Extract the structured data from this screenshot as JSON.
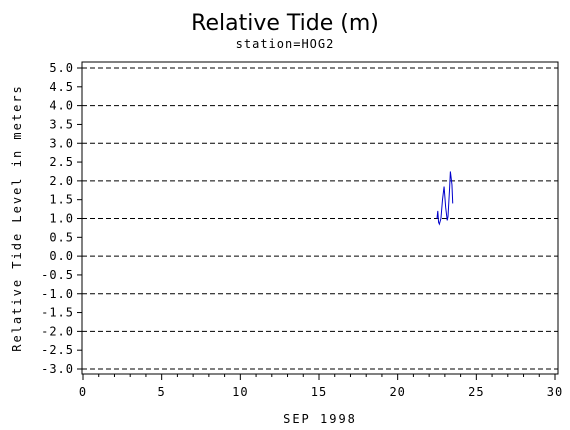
{
  "chart_data": {
    "type": "line",
    "title": "Relative Tide (m)",
    "subtitle": "station=HOG2",
    "xlabel": "SEP 1998",
    "ylabel": "Relative Tide Level in meters",
    "xlim": [
      0,
      30
    ],
    "ylim": [
      -3.0,
      5.0
    ],
    "x_ticks": [
      0,
      5,
      10,
      15,
      20,
      25,
      30
    ],
    "x_tick_labels": [
      "0",
      "5",
      "10",
      "15",
      "20",
      "25",
      "30"
    ],
    "y_ticks": [
      5.0,
      4.5,
      4.0,
      3.5,
      3.0,
      2.5,
      2.0,
      1.5,
      1.0,
      0.5,
      0.0,
      -0.5,
      -1.0,
      -1.5,
      -2.0,
      -2.5,
      -3.0
    ],
    "y_tick_labels": [
      "5.0",
      "4.5",
      "4.0",
      "3.5",
      "3.0",
      "2.5",
      "2.0",
      "1.5",
      "1.0",
      "0.5",
      "0.0",
      "-0.5",
      "-1.0",
      "-1.5",
      "-2.0",
      "-2.5",
      "-3.0"
    ],
    "grid": "horizontal dashed lines at whole meters",
    "grid_lines_at": [
      5.0,
      4.0,
      3.0,
      2.0,
      1.0,
      0.0,
      -1.0,
      -2.0,
      -3.0
    ],
    "series": [
      {
        "color": "#0000cc",
        "x": [
          22.5,
          22.55,
          22.6,
          22.65,
          22.75,
          22.85,
          22.95,
          23.05,
          23.15,
          23.2,
          23.3,
          23.35,
          23.45,
          23.5
        ],
        "y": [
          1.0,
          1.2,
          0.9,
          0.85,
          1.0,
          1.5,
          1.85,
          1.3,
          0.95,
          1.05,
          1.8,
          2.25,
          1.9,
          1.4
        ]
      }
    ]
  }
}
